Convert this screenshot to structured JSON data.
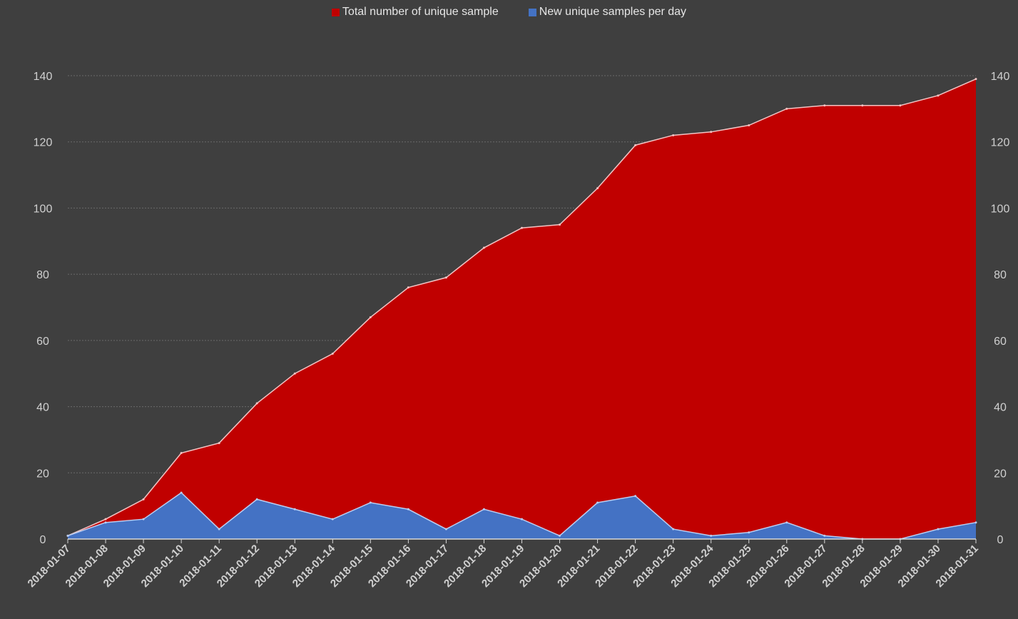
{
  "chart_data": {
    "type": "area",
    "categories": [
      "2018-01-07",
      "2018-01-08",
      "2018-01-09",
      "2018-01-10",
      "2018-01-11",
      "2018-01-12",
      "2018-01-13",
      "2018-01-14",
      "2018-01-15",
      "2018-01-16",
      "2018-01-17",
      "2018-01-18",
      "2018-01-19",
      "2018-01-20",
      "2018-01-21",
      "2018-01-22",
      "2018-01-23",
      "2018-01-24",
      "2018-01-25",
      "2018-01-26",
      "2018-01-27",
      "2018-01-28",
      "2018-01-29",
      "2018-01-30",
      "2018-01-31"
    ],
    "series": [
      {
        "name": "Total number of unique sample",
        "color": "#c00000",
        "values": [
          1,
          6,
          12,
          26,
          29,
          41,
          50,
          56,
          67,
          76,
          79,
          88,
          94,
          95,
          106,
          119,
          122,
          123,
          125,
          130,
          131,
          131,
          131,
          134,
          139
        ]
      },
      {
        "name": "New unique samples per day",
        "color": "#4472c4",
        "values": [
          1,
          5,
          6,
          14,
          3,
          12,
          9,
          6,
          11,
          9,
          3,
          9,
          6,
          1,
          11,
          13,
          3,
          1,
          2,
          5,
          1,
          0,
          0,
          3,
          5
        ]
      }
    ],
    "title": "",
    "xlabel": "",
    "ylabel": "",
    "ylim": [
      0,
      140
    ],
    "yticks": [
      0,
      20,
      40,
      60,
      80,
      100,
      120,
      140
    ],
    "y2ticks": [
      0,
      20,
      40,
      60,
      80,
      100,
      120,
      140
    ],
    "grid": true,
    "legend_position": "top"
  },
  "colors": {
    "background": "#3f3f3f",
    "grid": "#6a6a6a",
    "axis_text": "#d0d0d0",
    "outline": "#f2c4c4"
  }
}
